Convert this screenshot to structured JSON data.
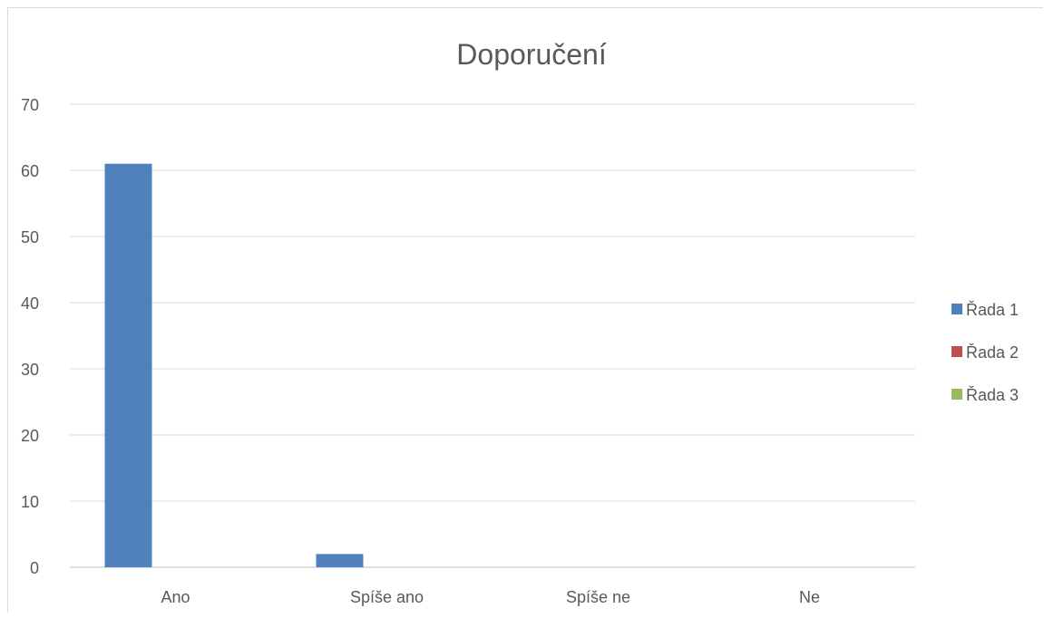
{
  "chart_data": {
    "type": "bar",
    "title": "Doporučení",
    "xlabel": "",
    "ylabel": "",
    "categories": [
      "Ano",
      "Spíše ano",
      "Spíše ne",
      "Ne"
    ],
    "series": [
      {
        "name": "Řada 1",
        "values": [
          61,
          2,
          0,
          0
        ],
        "color": "#4f81bd"
      },
      {
        "name": "Řada 2",
        "values": [
          0,
          0,
          0,
          0
        ],
        "color": "#c0504d"
      },
      {
        "name": "Řada 3",
        "values": [
          0,
          0,
          0,
          0
        ],
        "color": "#9bbb59"
      }
    ],
    "ylim": [
      0,
      70
    ],
    "yticks": [
      0,
      10,
      20,
      30,
      40,
      50,
      60,
      70
    ],
    "grid": true,
    "legend_position": "right"
  }
}
